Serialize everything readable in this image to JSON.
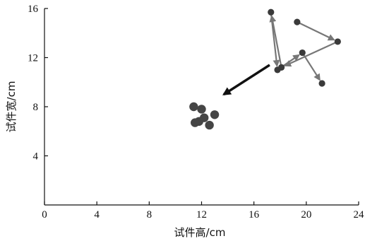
{
  "chart_data": {
    "type": "scatter",
    "title": "",
    "xlabel": "试件高/cm",
    "ylabel": "试件宽/cm",
    "xlim": [
      0,
      24
    ],
    "ylim": [
      0,
      16
    ],
    "xticks": [
      "0",
      "4",
      "8",
      "12",
      "16",
      "20",
      "24"
    ],
    "yticks": [
      "4",
      "8",
      "12",
      "16"
    ],
    "grid": false,
    "legend": "none",
    "series": [
      {
        "role": "trajectory",
        "points": [
          {
            "x": 19.3,
            "y": 14.9
          },
          {
            "x": 22.4,
            "y": 13.3
          },
          {
            "x": 18.1,
            "y": 11.2
          },
          {
            "x": 17.3,
            "y": 15.7
          },
          {
            "x": 17.8,
            "y": 11.0
          },
          {
            "x": 19.7,
            "y": 12.4
          },
          {
            "x": 21.2,
            "y": 9.9
          }
        ]
      },
      {
        "role": "cluster",
        "points": [
          {
            "x": 11.4,
            "y": 8.0
          },
          {
            "x": 12.0,
            "y": 7.8
          },
          {
            "x": 13.0,
            "y": 7.35
          },
          {
            "x": 12.2,
            "y": 7.1
          },
          {
            "x": 11.8,
            "y": 6.8
          },
          {
            "x": 11.5,
            "y": 6.7
          },
          {
            "x": 12.6,
            "y": 6.5
          }
        ]
      }
    ],
    "direction_arrow": {
      "from": {
        "x": 17.2,
        "y": 11.4
      },
      "to": {
        "x": 13.7,
        "y": 9.0
      }
    }
  }
}
